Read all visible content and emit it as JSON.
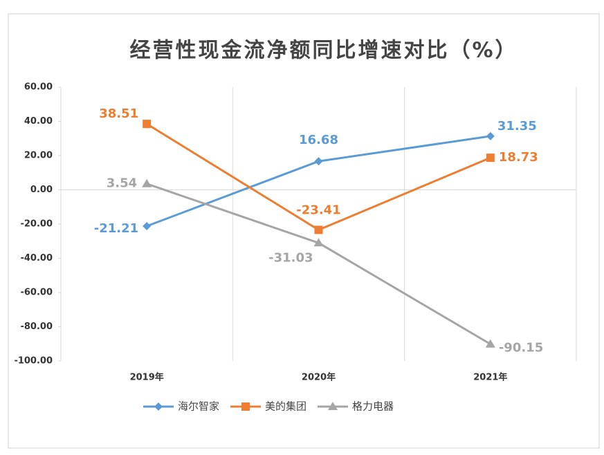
{
  "chart_data": {
    "type": "line",
    "title": "经营性现金流净额同比增速对比（%）",
    "categories": [
      "2019年",
      "2020年",
      "2021年"
    ],
    "series": [
      {
        "name": "海尔智家",
        "color": "#5b9bd5",
        "marker": "diamond",
        "values": [
          -21.21,
          16.68,
          31.35
        ]
      },
      {
        "name": "美的集团",
        "color": "#ed7d31",
        "marker": "square",
        "values": [
          38.51,
          -23.41,
          18.73
        ]
      },
      {
        "name": "格力电器",
        "color": "#a5a5a5",
        "marker": "triangle",
        "values": [
          3.54,
          -31.03,
          -90.15
        ]
      }
    ],
    "ylim": [
      -100,
      60
    ],
    "yticks": [
      {
        "value": -100,
        "label": "-100.00"
      },
      {
        "value": -80,
        "label": "-80.00"
      },
      {
        "value": -60,
        "label": "-60.00"
      },
      {
        "value": -40,
        "label": "-40.00"
      },
      {
        "value": -20,
        "label": "-20.00"
      },
      {
        "value": 0,
        "label": "0.00"
      },
      {
        "value": 20,
        "label": "20.00"
      },
      {
        "value": 40,
        "label": "40.00"
      },
      {
        "value": 60,
        "label": "60.00"
      }
    ],
    "legend": "bottom"
  }
}
